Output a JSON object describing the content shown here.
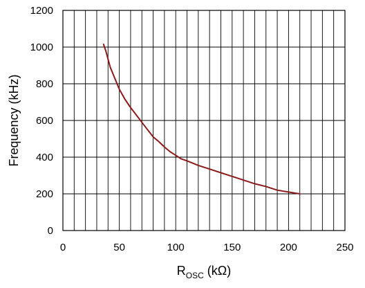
{
  "chart_data": {
    "type": "line",
    "xlabel": {
      "main": "R",
      "sub": "OSC",
      "unit": " (kΩ)"
    },
    "ylabel": "Frequency (kHz)",
    "xlim": [
      0,
      250
    ],
    "ylim": [
      0,
      1200
    ],
    "x_ticks": [
      0,
      50,
      100,
      150,
      200,
      250
    ],
    "y_ticks": [
      0,
      200,
      400,
      600,
      800,
      1000,
      1200
    ],
    "x_grid_step": 10,
    "y_grid_step": 200,
    "grid": true,
    "series": [
      {
        "color": "#8b1a1a",
        "x": [
          36,
          38,
          42,
          46,
          50,
          55,
          60,
          65,
          70,
          75,
          80,
          85,
          90,
          95,
          100,
          105,
          110,
          120,
          130,
          140,
          150,
          160,
          170,
          180,
          190,
          200,
          210
        ],
        "y": [
          1015,
          980,
          890,
          830,
          770,
          715,
          670,
          630,
          590,
          550,
          510,
          485,
          455,
          430,
          410,
          390,
          380,
          355,
          335,
          315,
          295,
          275,
          255,
          240,
          220,
          210,
          200
        ]
      }
    ]
  }
}
